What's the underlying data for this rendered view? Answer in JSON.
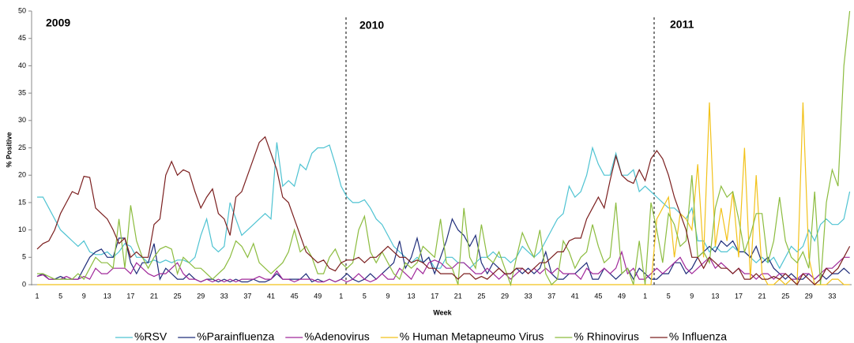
{
  "chart_data": {
    "type": "line",
    "y_label": "% Positive",
    "x_label": "Week",
    "annotations": [
      "2009",
      "2010",
      "2011"
    ],
    "ylim": [
      0,
      50
    ],
    "yticks": [
      0,
      5,
      10,
      15,
      20,
      25,
      30,
      35,
      40,
      45,
      50
    ],
    "categories": [
      "1",
      null,
      null,
      null,
      "5",
      null,
      null,
      null,
      "9",
      null,
      null,
      null,
      "13",
      null,
      null,
      null,
      "17",
      null,
      null,
      null,
      "21",
      null,
      null,
      null,
      "25",
      null,
      null,
      null,
      "29",
      null,
      null,
      null,
      "33",
      null,
      null,
      null,
      "37",
      null,
      null,
      null,
      "41",
      null,
      null,
      null,
      "45",
      null,
      null,
      null,
      "49",
      null,
      null,
      null,
      "1",
      null,
      null,
      null,
      "5",
      null,
      null,
      null,
      "9",
      null,
      null,
      null,
      "13",
      null,
      null,
      null,
      "17",
      null,
      null,
      null,
      "21",
      null,
      null,
      null,
      "25",
      null,
      null,
      null,
      "29",
      null,
      null,
      null,
      "33",
      null,
      null,
      null,
      "37",
      null,
      null,
      null,
      "41",
      null,
      null,
      null,
      "45",
      null,
      null,
      null,
      "49",
      null,
      null,
      null,
      "1",
      null,
      null,
      null,
      "5",
      null,
      null,
      null,
      "9",
      null,
      null,
      null,
      "13",
      null,
      null,
      null,
      "17",
      null,
      null,
      null,
      "21",
      null,
      null,
      null,
      "25",
      null,
      null,
      null,
      "29",
      null,
      null,
      null,
      "33",
      null,
      null,
      null
    ],
    "series": [
      {
        "name": "%RSV",
        "color": "#4fc3d2",
        "values": [
          16,
          16,
          14,
          12,
          10,
          9,
          8,
          7,
          8,
          6,
          5.5,
          5.5,
          6,
          5,
          6,
          7.5,
          7,
          5,
          5,
          4,
          4.5,
          4,
          4.5,
          4,
          4.5,
          4.5,
          4,
          5,
          9,
          12,
          7,
          6,
          7,
          15,
          12,
          9,
          10,
          11,
          12,
          13,
          12,
          26,
          18,
          19,
          18,
          22,
          21,
          24,
          25,
          25,
          25.5,
          22,
          18,
          16,
          15,
          15,
          15.5,
          14,
          12,
          11,
          9,
          7,
          6,
          5,
          4,
          5,
          4,
          5,
          3,
          3,
          5,
          5,
          4,
          4,
          3,
          4,
          5,
          5,
          6,
          5,
          5,
          4,
          5,
          7,
          6,
          5,
          6,
          8,
          10,
          12,
          13,
          18,
          16,
          17,
          20,
          25,
          22,
          20,
          20,
          24,
          20,
          20,
          21,
          17,
          18,
          17,
          16,
          15,
          14,
          14,
          13,
          12,
          14,
          8,
          8,
          6,
          7,
          6,
          6,
          7,
          6,
          6,
          5,
          4,
          5,
          4,
          5,
          3,
          5,
          7,
          6,
          7,
          10,
          8,
          11,
          12,
          11,
          11,
          12,
          17
        ]
      },
      {
        "name": "%Parainfluenza",
        "color": "#1f2d7a",
        "values": [
          1.5,
          2,
          1,
          1,
          1.5,
          1,
          1,
          1,
          3,
          5,
          6,
          6.5,
          5,
          5,
          8.5,
          8.5,
          4,
          2,
          4,
          4,
          7.5,
          1,
          3,
          2,
          1,
          1,
          2,
          1,
          0.5,
          1,
          1,
          0.5,
          1,
          0.5,
          1,
          0.5,
          0.5,
          1,
          0.5,
          0.5,
          1,
          2,
          1,
          1,
          1,
          1,
          2,
          0.5,
          1,
          0.5,
          1,
          0.5,
          1,
          2,
          1,
          0.5,
          1,
          2,
          1,
          2,
          3,
          4,
          8,
          3,
          5,
          8.5,
          4,
          5,
          2,
          5,
          8,
          12,
          10,
          9,
          7,
          9,
          4,
          2,
          4,
          3,
          2,
          2,
          3,
          2,
          3,
          2,
          3,
          6,
          2,
          1,
          1,
          2,
          2,
          3,
          4,
          1,
          1,
          3,
          2,
          1,
          2,
          3,
          1,
          3,
          2,
          1,
          1,
          2,
          2,
          4,
          4,
          2,
          3,
          5,
          6,
          7,
          6,
          8,
          7,
          8,
          6,
          6,
          5,
          7,
          4,
          5,
          3,
          2,
          1,
          2,
          1,
          1,
          2,
          1,
          2,
          1,
          2,
          2,
          3,
          2
        ]
      },
      {
        "name": "%Adenovirus",
        "color": "#a0289a",
        "values": [
          1.5,
          1.8,
          1,
          1,
          1,
          1.5,
          1,
          1,
          1.5,
          1,
          3,
          2,
          2,
          3,
          3,
          3,
          2,
          4,
          3,
          2,
          1.5,
          2,
          2,
          3,
          4,
          2,
          1,
          1,
          0.5,
          1,
          0.5,
          1,
          0.5,
          1,
          0.5,
          1,
          1,
          1,
          1.5,
          1,
          1,
          2.5,
          1,
          1,
          0.5,
          1,
          1,
          1,
          0.5,
          0.5,
          1,
          0.5,
          1,
          0.5,
          1,
          2,
          1,
          0.5,
          1,
          2,
          1,
          1,
          3,
          2,
          1,
          3,
          2,
          4,
          4.5,
          4,
          3,
          3,
          4,
          4,
          3,
          2,
          2,
          3,
          2,
          1,
          2,
          1,
          2,
          3,
          2,
          3,
          2,
          3,
          2,
          3,
          2,
          2,
          2,
          1,
          3,
          2,
          2,
          3,
          2,
          3,
          6,
          2,
          3,
          1,
          1,
          2,
          3,
          2,
          3,
          4,
          5,
          3,
          2,
          3,
          4,
          5,
          3,
          4,
          3,
          2,
          3,
          2,
          2,
          1,
          2,
          2,
          1,
          2,
          2,
          1,
          1,
          2,
          2,
          1,
          2,
          3,
          3,
          4,
          5,
          5
        ]
      },
      {
        "name": "% Human Metapneumo Virus",
        "color": "#f2c21a",
        "values": [
          0,
          0,
          0,
          0,
          0,
          0,
          0,
          0,
          0,
          0,
          0,
          0,
          0,
          0,
          0,
          0,
          0,
          0,
          0,
          0,
          0,
          0,
          0,
          0,
          0,
          0,
          0,
          0,
          0,
          0,
          0,
          0,
          0,
          0,
          0,
          0,
          0,
          0,
          0,
          0,
          0,
          0,
          0,
          0,
          0,
          0,
          0,
          0,
          0,
          0,
          0,
          0,
          0,
          0,
          0,
          0,
          0,
          0,
          0,
          0,
          0,
          0,
          0,
          0,
          0,
          0,
          0,
          0,
          0,
          0,
          0,
          0,
          0,
          0,
          0,
          0,
          0,
          0,
          0,
          0,
          0,
          0,
          0,
          0,
          0,
          0,
          0,
          0,
          0,
          0,
          0,
          0,
          0,
          0,
          0,
          0,
          0,
          0,
          0,
          0,
          0,
          0,
          0,
          0,
          0,
          0,
          12,
          14,
          16,
          5,
          13,
          12,
          10,
          22,
          5,
          33.3,
          7,
          14,
          8,
          17,
          5,
          25,
          1,
          20,
          2,
          0,
          0,
          1,
          0,
          1,
          0,
          33.3,
          5,
          0,
          0,
          0,
          1,
          1,
          0,
          0
        ]
      },
      {
        "name": "% Rhinovirus",
        "color": "#8cbc3f",
        "values": [
          2,
          2,
          1.5,
          1,
          1,
          1,
          1,
          2,
          1,
          3,
          5,
          4,
          4,
          3,
          12,
          3,
          14.5,
          8,
          5,
          3,
          5,
          6.5,
          7,
          6.5,
          2,
          5,
          4,
          3,
          3,
          2,
          1,
          2,
          3,
          5,
          8,
          7,
          5,
          7.5,
          4,
          3,
          2,
          3,
          4,
          6,
          10,
          6,
          7,
          5,
          2,
          2,
          5,
          6.5,
          4,
          3,
          4,
          10,
          12.5,
          6,
          4,
          6,
          4,
          2,
          1,
          4,
          3,
          4,
          7,
          6,
          5,
          12,
          4,
          3,
          0,
          14,
          5,
          3,
          11,
          5,
          4,
          6,
          3,
          0,
          5,
          9.5,
          7,
          5,
          10,
          2,
          0,
          1,
          8,
          6,
          3,
          5,
          6,
          11,
          7,
          4,
          5,
          15,
          2,
          3,
          0,
          8,
          0,
          15,
          10,
          4,
          13,
          11,
          7,
          8,
          20,
          5,
          6,
          4,
          14,
          18,
          16,
          17,
          12,
          6,
          9,
          13,
          13,
          4,
          8,
          16,
          8,
          5,
          4,
          6,
          3,
          17,
          0,
          15,
          21,
          18,
          40,
          50
        ]
      },
      {
        "name": "% Influenza",
        "color": "#7b1f1f",
        "values": [
          6.5,
          7.5,
          8,
          10,
          13,
          15,
          17,
          16.5,
          19.8,
          19.6,
          14,
          13,
          12,
          10,
          7.5,
          8.5,
          5,
          6,
          5,
          5,
          11,
          12,
          20,
          22.5,
          20,
          21,
          20.5,
          17,
          14,
          16,
          17.5,
          13,
          12,
          9,
          16,
          17,
          20,
          23,
          26,
          27,
          24,
          21,
          16,
          15,
          12,
          9,
          6,
          5,
          4,
          4.5,
          3,
          2.5,
          4,
          4.5,
          4.5,
          5,
          4,
          5,
          5,
          6,
          7,
          6,
          5,
          5,
          4,
          4.5,
          4,
          3,
          3,
          2,
          2,
          2,
          1,
          2,
          2,
          1,
          1.5,
          1,
          2,
          3,
          2,
          2,
          3,
          3,
          2,
          3,
          4,
          4,
          5,
          6,
          6,
          8,
          8.5,
          8.5,
          12,
          14,
          16,
          14,
          19,
          23.5,
          20,
          19,
          18.5,
          21,
          19,
          23,
          24.5,
          23,
          20,
          16,
          13,
          10,
          5,
          5,
          3,
          5,
          4,
          3,
          3,
          2,
          3,
          1,
          1,
          2,
          1,
          1,
          1.5,
          1,
          2,
          1,
          0,
          2,
          1,
          0,
          1,
          3,
          2,
          3,
          5,
          7
        ]
      }
    ]
  }
}
